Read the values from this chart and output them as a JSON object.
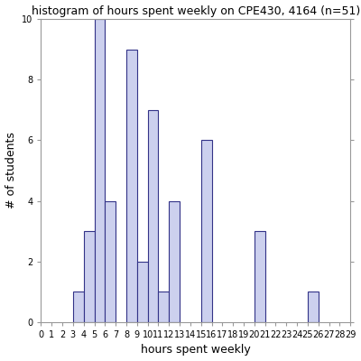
{
  "title": "histogram of hours spent weekly on CPE430, 4164 (n=51)",
  "xlabel": "hours spent weekly",
  "ylabel": "# of students",
  "xlim": [
    0,
    29
  ],
  "ylim": [
    0,
    10
  ],
  "xticks": [
    0,
    1,
    2,
    3,
    4,
    5,
    6,
    7,
    8,
    9,
    10,
    11,
    12,
    13,
    14,
    15,
    16,
    17,
    18,
    19,
    20,
    21,
    22,
    23,
    24,
    25,
    26,
    27,
    28,
    29
  ],
  "yticks": [
    0,
    2,
    4,
    6,
    8,
    10
  ],
  "bar_left_edges": [
    3,
    4,
    5,
    6,
    8,
    9,
    10,
    11,
    12,
    15,
    20,
    25
  ],
  "bar_heights": [
    1,
    3,
    10,
    4,
    9,
    2,
    7,
    1,
    4,
    6,
    3,
    1
  ],
  "bar_color": "#ccd0ee",
  "bar_edge_color": "#333388",
  "bar_width": 1.0,
  "figsize": [
    4.0,
    4.0
  ],
  "dpi": 100,
  "title_fontsize": 9,
  "label_fontsize": 9,
  "tick_fontsize": 7,
  "spine_color": "#999999",
  "tick_color": "#999999"
}
